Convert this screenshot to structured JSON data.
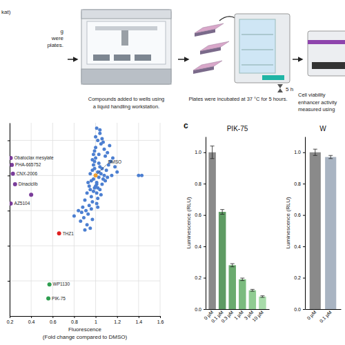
{
  "workflow": {
    "left_fragments": [
      "kat)",
      "g",
      "were",
      "plates."
    ],
    "steps": [
      {
        "caption": [
          "Compounds added to wells using",
          "a liquid handling workstation."
        ]
      },
      {
        "caption": [
          "Plates were incubated at 37 °C for 5 hours."
        ],
        "timer": "5 h"
      },
      {
        "caption": [
          "Cell viability",
          "enhancer activity",
          "measured using"
        ]
      }
    ]
  },
  "panel_labels": [
    "c"
  ],
  "chart_data": [
    {
      "type": "scatter",
      "xlabel": [
        "Fluorescence",
        "(Fold change compared to DMSO)"
      ],
      "xlim": [
        0.2,
        1.6
      ],
      "xticks": [
        0.2,
        0.4,
        0.6,
        0.8,
        1,
        1.2,
        1.4,
        1.6
      ],
      "ylim": [
        0.2,
        1.3
      ],
      "yticks": [
        0.4,
        0.6,
        0.8,
        1,
        1.2
      ],
      "tick_labels": "x",
      "grid": true,
      "marker": "circle",
      "series": [
        {
          "color": "#4c7fd1",
          "x": [
            1.0,
            1.02,
            0.98,
            1.04,
            0.97,
            1.01,
            1.03,
            0.99,
            1.05,
            0.96,
            1.06,
            1.0,
            1.02,
            0.98,
            1.08,
            0.95,
            1.03,
            1.01,
            0.99,
            1.07,
            1.1,
            0.94,
            1.04,
            1.0,
            1.12,
            0.97,
            1.05,
            1.02,
            0.93,
            1.09,
            1.01,
            0.98,
            1.06,
            1.03,
            0.96,
            1.11,
            1.0,
            1.04,
            0.99,
            1.14,
            0.92,
            1.02,
            1.07,
            0.97,
            1.05,
            1.0,
            0.95,
            1.08,
            1.03,
            1.01,
            0.9,
            0.94,
            0.91,
            0.88,
            0.93,
            0.89,
            0.96,
            0.92,
            0.86,
            0.87,
            0.95,
            0.9,
            1.15,
            1.13,
            1.18,
            1.06,
            1.09,
            1.01,
            0.98,
            1.04,
            1.16,
            0.99,
            1.2,
            1.11,
            1.4,
            1.43,
            0.84,
            0.8,
            0.97,
            1.02
          ],
          "values": [
            1.0,
            1.02,
            0.98,
            1.05,
            1.03,
            0.95,
            0.99,
            1.08,
            1.01,
            0.97,
            1.04,
            1.1,
            0.93,
            1.06,
            1.0,
            1.01,
            1.12,
            0.96,
            1.14,
            0.98,
            1.03,
            0.94,
            0.92,
            1.16,
            1.06,
            1.09,
            1.18,
            1.2,
            0.96,
            1.11,
            0.9,
            0.91,
            0.95,
            1.07,
            0.88,
            1.13,
            1.22,
            1.24,
            1.04,
            1.08,
            0.9,
            0.87,
            1.19,
            0.85,
            0.89,
            0.94,
            0.92,
            1.15,
            1.02,
            1.27,
            0.86,
            0.83,
            0.8,
            0.82,
            0.78,
            0.76,
            0.81,
            0.72,
            0.74,
            0.79,
            0.7,
            0.69,
            1.0,
            1.17,
            1.05,
            1.21,
            0.97,
            0.84,
            1.12,
            1.26,
            1.1,
            0.93,
            1.02,
            0.99,
            1.0,
            1.0,
            0.8,
            0.77,
            0.75,
            0.82
          ]
        },
        {
          "color": "#7a3d9a",
          "x": [
            0.21,
            0.22,
            0.23,
            0.25,
            0.21,
            0.4
          ],
          "values": [
            1.1,
            1.06,
            1.01,
            0.95,
            0.84,
            0.89
          ],
          "labels": [
            "Obatoclax mesylate",
            "PHA-665752",
            "CNX-2006",
            "Dinaciclib",
            "AZ5104",
            null
          ]
        },
        {
          "color": "#e02020",
          "x": [
            0.66
          ],
          "values": [
            0.67
          ],
          "labels": [
            "THZ1"
          ]
        },
        {
          "color": "#2e9e4f",
          "x": [
            0.57,
            0.56
          ],
          "values": [
            0.38,
            0.3
          ],
          "labels": [
            "WP1130",
            "PIK-75"
          ]
        },
        {
          "color": "#f0a030",
          "x": [
            1
          ],
          "values": [
            1
          ],
          "labels": [
            "DMSO"
          ]
        }
      ]
    },
    {
      "type": "bar",
      "title": "PIK-75",
      "ylabel": "Luminescence (RLU)",
      "categories": [
        "0 µM",
        "0.1 µM",
        "0.3 µM",
        "1 µM",
        "3 µM",
        "10 µM"
      ],
      "values": [
        1.0,
        0.62,
        0.28,
        0.19,
        0.12,
        0.08
      ],
      "errors": [
        0.04,
        0.015,
        0.01,
        0.008,
        0.006,
        0.005
      ],
      "colors": [
        "#8a8a8a",
        "#5e9b63",
        "#6aab6e",
        "#7bbb7e",
        "#90cc92",
        "#a8dcaa"
      ],
      "ylim": [
        0,
        1.1
      ],
      "yticks": [
        {
          "value": 0,
          "label": "0.0"
        },
        0.2,
        0.4,
        0.6,
        0.8,
        {
          "value": 1,
          "label": "1.0"
        }
      ]
    },
    {
      "type": "bar",
      "title": "W",
      "ylabel": "Luminescence (RLU)",
      "categories": [
        "0 µM",
        "0.1 µM"
      ],
      "values": [
        1.0,
        0.97
      ],
      "errors": [
        0.02,
        0.01
      ],
      "colors": [
        "#8a8a8a",
        "#a9b4c2"
      ],
      "ylim": [
        0,
        1.1
      ],
      "yticks": [
        {
          "value": 0,
          "label": "0.0"
        },
        0.2,
        0.4,
        0.6,
        0.8,
        {
          "value": 1,
          "label": "1.0"
        }
      ]
    }
  ]
}
